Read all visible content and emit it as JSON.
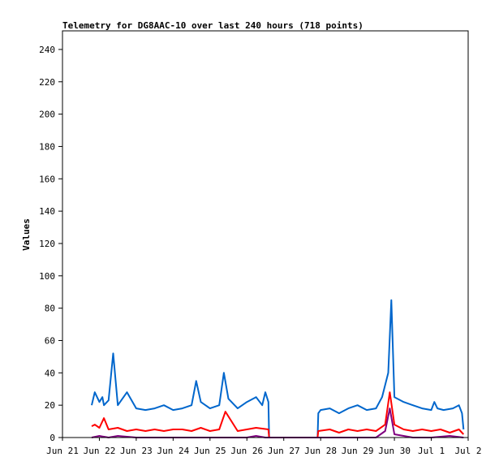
{
  "chart_data": {
    "type": "line",
    "title": "Telemetry for DG8AAC-10 over last 240 hours (718 points)",
    "xlabel": "",
    "ylabel": "Values",
    "ylim": [
      0,
      250
    ],
    "yticks": [
      0,
      20,
      40,
      60,
      80,
      100,
      120,
      140,
      160,
      180,
      200,
      220,
      240
    ],
    "xlim": [
      "2024-06-21T00:00",
      "2024-07-02T00:00"
    ],
    "xticks": [
      "Jun 21",
      "Jun 22",
      "Jun 23",
      "Jun 24",
      "Jun 25",
      "Jun 26",
      "Jun 27",
      "Jun 28",
      "Jun 29",
      "Jun 30",
      "Jul 1",
      "Jul 2"
    ],
    "grid": false,
    "legend": "none",
    "series": [
      {
        "color": "#0066cc",
        "x": [
          "2024-06-21T19:00",
          "2024-06-21T21:00",
          "2024-06-22T00:00",
          "2024-06-22T02:00",
          "2024-06-22T03:00",
          "2024-06-22T06:00",
          "2024-06-22T09:00",
          "2024-06-22T12:00",
          "2024-06-22T18:00",
          "2024-06-23T00:00",
          "2024-06-23T06:00",
          "2024-06-23T12:00",
          "2024-06-23T18:00",
          "2024-06-24T00:00",
          "2024-06-24T06:00",
          "2024-06-24T12:00",
          "2024-06-24T15:00",
          "2024-06-24T18:00",
          "2024-06-25T00:00",
          "2024-06-25T06:00",
          "2024-06-25T09:00",
          "2024-06-25T12:00",
          "2024-06-25T18:00",
          "2024-06-26T00:00",
          "2024-06-26T06:00",
          "2024-06-26T10:00",
          "2024-06-26T12:00",
          "2024-06-26T14:00",
          "2024-06-26T14:30",
          "2024-06-27T22:00",
          "2024-06-27T22:30",
          "2024-06-28T00:00",
          "2024-06-28T06:00",
          "2024-06-28T12:00",
          "2024-06-28T18:00",
          "2024-06-29T00:00",
          "2024-06-29T06:00",
          "2024-06-29T12:00",
          "2024-06-29T16:00",
          "2024-06-29T20:00",
          "2024-06-29T22:00",
          "2024-06-30T00:00",
          "2024-06-30T06:00",
          "2024-06-30T12:00",
          "2024-06-30T18:00",
          "2024-07-01T00:00",
          "2024-07-01T02:00",
          "2024-07-01T04:00",
          "2024-07-01T08:00",
          "2024-07-01T14:00",
          "2024-07-01T18:00",
          "2024-07-01T20:00",
          "2024-07-01T21:00"
        ],
        "y": [
          20,
          28,
          22,
          25,
          20,
          23,
          52,
          20,
          28,
          18,
          17,
          18,
          20,
          17,
          18,
          20,
          35,
          22,
          18,
          20,
          40,
          24,
          18,
          22,
          25,
          20,
          28,
          22,
          0,
          0,
          15,
          17,
          18,
          15,
          18,
          20,
          17,
          18,
          25,
          40,
          85,
          25,
          22,
          20,
          18,
          17,
          22,
          18,
          17,
          18,
          20,
          15,
          5
        ]
      },
      {
        "color": "#ff0000",
        "x": [
          "2024-06-21T19:00",
          "2024-06-21T21:00",
          "2024-06-22T00:00",
          "2024-06-22T03:00",
          "2024-06-22T06:00",
          "2024-06-22T12:00",
          "2024-06-22T18:00",
          "2024-06-23T00:00",
          "2024-06-23T06:00",
          "2024-06-23T12:00",
          "2024-06-23T18:00",
          "2024-06-24T00:00",
          "2024-06-24T06:00",
          "2024-06-24T12:00",
          "2024-06-24T18:00",
          "2024-06-25T00:00",
          "2024-06-25T06:00",
          "2024-06-25T10:00",
          "2024-06-25T18:00",
          "2024-06-26T00:00",
          "2024-06-26T06:00",
          "2024-06-26T14:00",
          "2024-06-26T14:30",
          "2024-06-27T22:00",
          "2024-06-27T22:30",
          "2024-06-28T06:00",
          "2024-06-28T12:00",
          "2024-06-28T18:00",
          "2024-06-29T00:00",
          "2024-06-29T06:00",
          "2024-06-29T12:00",
          "2024-06-29T18:00",
          "2024-06-29T21:00",
          "2024-06-30T00:00",
          "2024-06-30T06:00",
          "2024-06-30T12:00",
          "2024-06-30T18:00",
          "2024-07-01T00:00",
          "2024-07-01T06:00",
          "2024-07-01T12:00",
          "2024-07-01T18:00",
          "2024-07-01T21:00"
        ],
        "y": [
          7,
          8,
          6,
          12,
          5,
          6,
          4,
          5,
          4,
          5,
          4,
          5,
          5,
          4,
          6,
          4,
          5,
          16,
          4,
          5,
          6,
          5,
          0,
          0,
          4,
          5,
          3,
          5,
          4,
          5,
          4,
          8,
          28,
          8,
          5,
          4,
          5,
          4,
          5,
          3,
          5,
          2
        ]
      },
      {
        "color": "#800080",
        "x": [
          "2024-06-21T19:00",
          "2024-06-22T00:00",
          "2024-06-22T06:00",
          "2024-06-22T12:00",
          "2024-06-23T00:00",
          "2024-06-24T00:00",
          "2024-06-25T00:00",
          "2024-06-26T00:00",
          "2024-06-26T06:00",
          "2024-06-26T12:00",
          "2024-06-26T14:30",
          "2024-06-27T22:00",
          "2024-06-28T12:00",
          "2024-06-29T12:00",
          "2024-06-29T18:00",
          "2024-06-29T21:00",
          "2024-06-30T00:00",
          "2024-06-30T12:00",
          "2024-07-01T00:00",
          "2024-07-01T12:00",
          "2024-07-01T21:00"
        ],
        "y": [
          0,
          1,
          0,
          1,
          0,
          0,
          0,
          0,
          1,
          0,
          0,
          0,
          0,
          0,
          4,
          18,
          2,
          0,
          0,
          1,
          0
        ]
      }
    ]
  }
}
